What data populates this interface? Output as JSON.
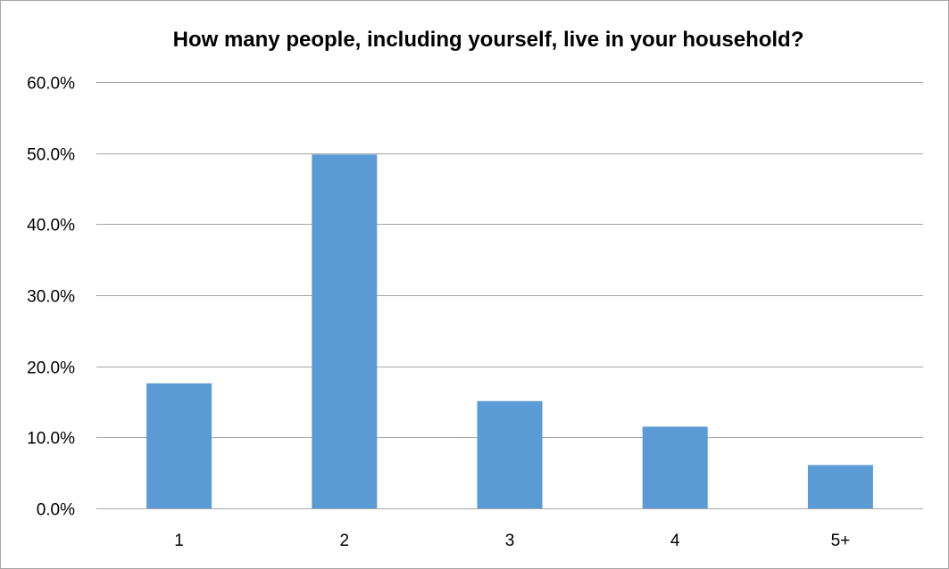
{
  "chart_data": {
    "type": "bar",
    "title": "How many people, including yourself, live in your household?",
    "xlabel": "",
    "ylabel": "",
    "categories": [
      "1",
      "2",
      "3",
      "4",
      "5+"
    ],
    "values": [
      17.6,
      49.8,
      15.1,
      11.5,
      6.1
    ],
    "value_format": "percent",
    "ylim": [
      0,
      60
    ],
    "y_ticks": [
      0,
      10,
      20,
      30,
      40,
      50,
      60
    ],
    "y_tick_labels": [
      "0.0%",
      "10.0%",
      "20.0%",
      "30.0%",
      "40.0%",
      "50.0%",
      "60.0%"
    ],
    "grid": true,
    "legend": "none",
    "bar_color": "#5B9BD5",
    "grid_color": "#A6A6A6",
    "border_color": "#A6A6A6"
  }
}
